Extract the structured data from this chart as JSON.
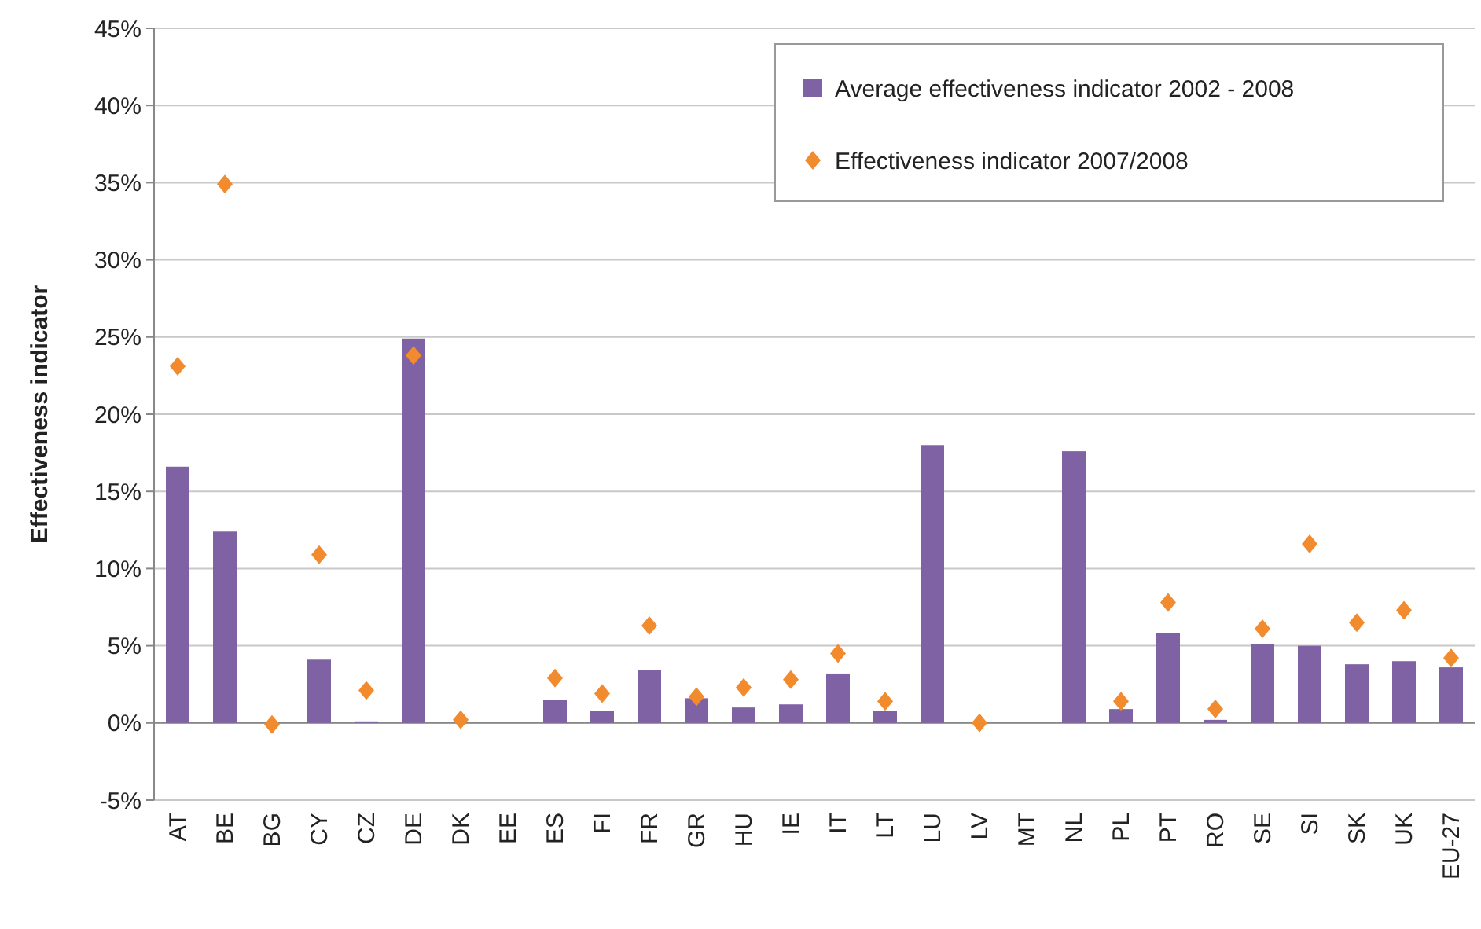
{
  "chart_data": {
    "type": "bar",
    "ylabel": "Effectiveness indicator",
    "categories": [
      "AT",
      "BE",
      "BG",
      "CY",
      "CZ",
      "DE",
      "DK",
      "EE",
      "ES",
      "FI",
      "FR",
      "GR",
      "HU",
      "IE",
      "IT",
      "LT",
      "LU",
      "LV",
      "MT",
      "NL",
      "PL",
      "PT",
      "RO",
      "SE",
      "SI",
      "SK",
      "UK",
      "EU-27"
    ],
    "series": [
      {
        "name": "Average effectiveness indicator 2002 - 2008",
        "color": "#7f62a3",
        "values": [
          16.6,
          12.4,
          0,
          4.1,
          0.1,
          24.9,
          0,
          0,
          1.5,
          0.8,
          3.4,
          1.6,
          1.0,
          1.2,
          3.2,
          0.8,
          18.0,
          0,
          0,
          17.6,
          0.9,
          5.8,
          0.2,
          5.1,
          5.0,
          3.8,
          4.0,
          3.6
        ]
      },
      {
        "name": "Effectiveness indicator 2007/2008",
        "type": "scatter",
        "color": "#f28a2e",
        "marker": "diamond",
        "values": [
          23.1,
          34.9,
          -0.1,
          10.9,
          2.1,
          23.8,
          0.2,
          null,
          2.9,
          1.9,
          6.3,
          1.7,
          2.3,
          2.8,
          4.5,
          1.4,
          null,
          0,
          null,
          null,
          1.4,
          7.8,
          0.9,
          6.1,
          11.6,
          6.5,
          7.3,
          4.2
        ]
      }
    ],
    "ylim": [
      -5,
      45
    ],
    "yticks": [
      {
        "value": -5,
        "label": "-5%"
      },
      {
        "value": 0,
        "label": "0%"
      },
      {
        "value": 5,
        "label": "5%"
      },
      {
        "value": 10,
        "label": "10%"
      },
      {
        "value": 15,
        "label": "15%"
      },
      {
        "value": 20,
        "label": "20%"
      },
      {
        "value": 25,
        "label": "25%"
      },
      {
        "value": 30,
        "label": "30%"
      },
      {
        "value": 35,
        "label": "35%"
      },
      {
        "value": 40,
        "label": "40%"
      },
      {
        "value": 45,
        "label": "45%"
      }
    ],
    "grid": "y",
    "legend": "top right"
  }
}
